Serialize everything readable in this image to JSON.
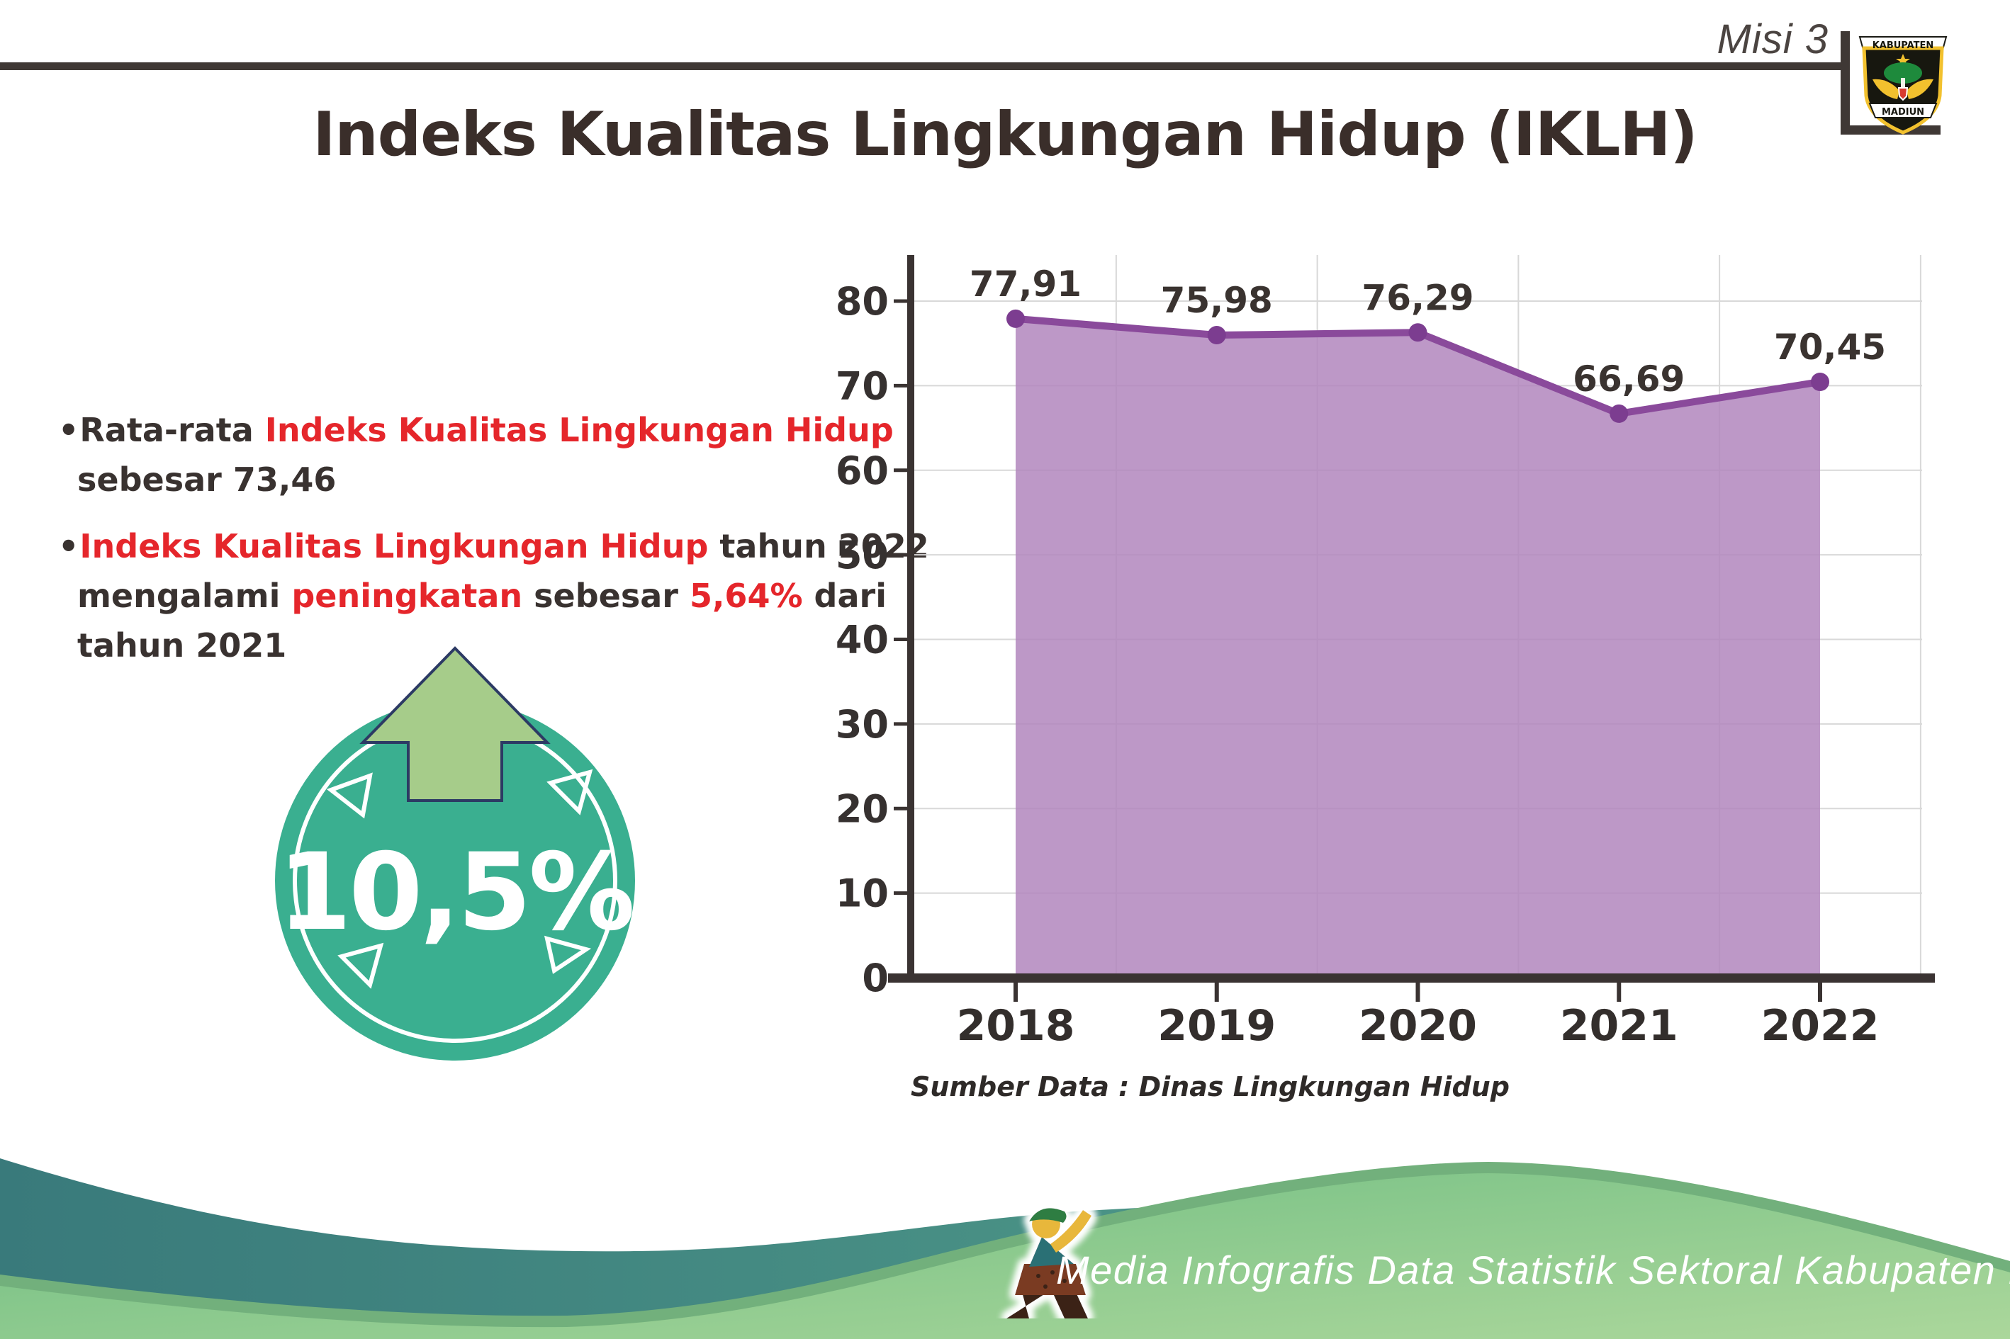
{
  "header": {
    "misi": "Misi 3",
    "title": "Indeks Kualitas Lingkungan Hidup (IKLH)"
  },
  "logo": {
    "top_banner": "KABUPATEN",
    "bottom_banner": "MADIUN"
  },
  "bullet_char": "•",
  "bullets": [
    {
      "lines": [
        [
          {
            "text": "Rata-rata ",
            "color": "dark"
          },
          {
            "text": "Indeks Kualitas Lingkungan Hidup",
            "color": "red"
          }
        ],
        [
          {
            "text": "sebesar 73,46",
            "color": "dark"
          }
        ]
      ]
    },
    {
      "lines": [
        [
          {
            "text": "Indeks Kualitas Lingkungan Hidup",
            "color": "red"
          },
          {
            "text": " tahun 2022",
            "color": "dark"
          }
        ],
        [
          {
            "text": "mengalami ",
            "color": "dark"
          },
          {
            "text": "peningkatan",
            "color": "red"
          },
          {
            "text": " sebesar ",
            "color": "dark"
          },
          {
            "text": "5,64%",
            "color": "red"
          },
          {
            "text": " dari",
            "color": "dark"
          }
        ],
        [
          {
            "text": "tahun 2021",
            "color": "dark"
          }
        ]
      ]
    }
  ],
  "badge": {
    "value": "10,5%"
  },
  "chart_data": {
    "type": "area",
    "categories": [
      "2018",
      "2019",
      "2020",
      "2021",
      "2022"
    ],
    "series": [
      {
        "name": "IKLH",
        "values": [
          77.91,
          75.98,
          76.29,
          66.69,
          70.45
        ]
      }
    ],
    "data_labels": [
      "77,91",
      "75,98",
      "76,29",
      "66,69",
      "70,45"
    ],
    "title": "Indeks Kualitas Lingkungan Hidup (IKLH)",
    "xlabel": "",
    "ylabel": "",
    "ylim": [
      0,
      80
    ],
    "ytick_step": 10,
    "grid": true,
    "legend": false,
    "line_color": "#8a4a9b",
    "marker_color": "#7c3d90",
    "fill_color": "#b286bd",
    "source_note": "Sumber Data : Dinas Lingkungan Hidup"
  },
  "footer": {
    "credit": "Media Infografis Data Statistik Sektoral Kabupaten Madiun |"
  },
  "colors": {
    "accent_red": "#e5262b",
    "dark_text": "#393230",
    "teal_badge": "#3aaf90",
    "arrow_green": "#a6cc8a",
    "wave_teal_dark": "#397a7b",
    "wave_teal_light": "#57a58e",
    "wave_green": "#74bf86",
    "gridline": "#d8d8d8"
  }
}
